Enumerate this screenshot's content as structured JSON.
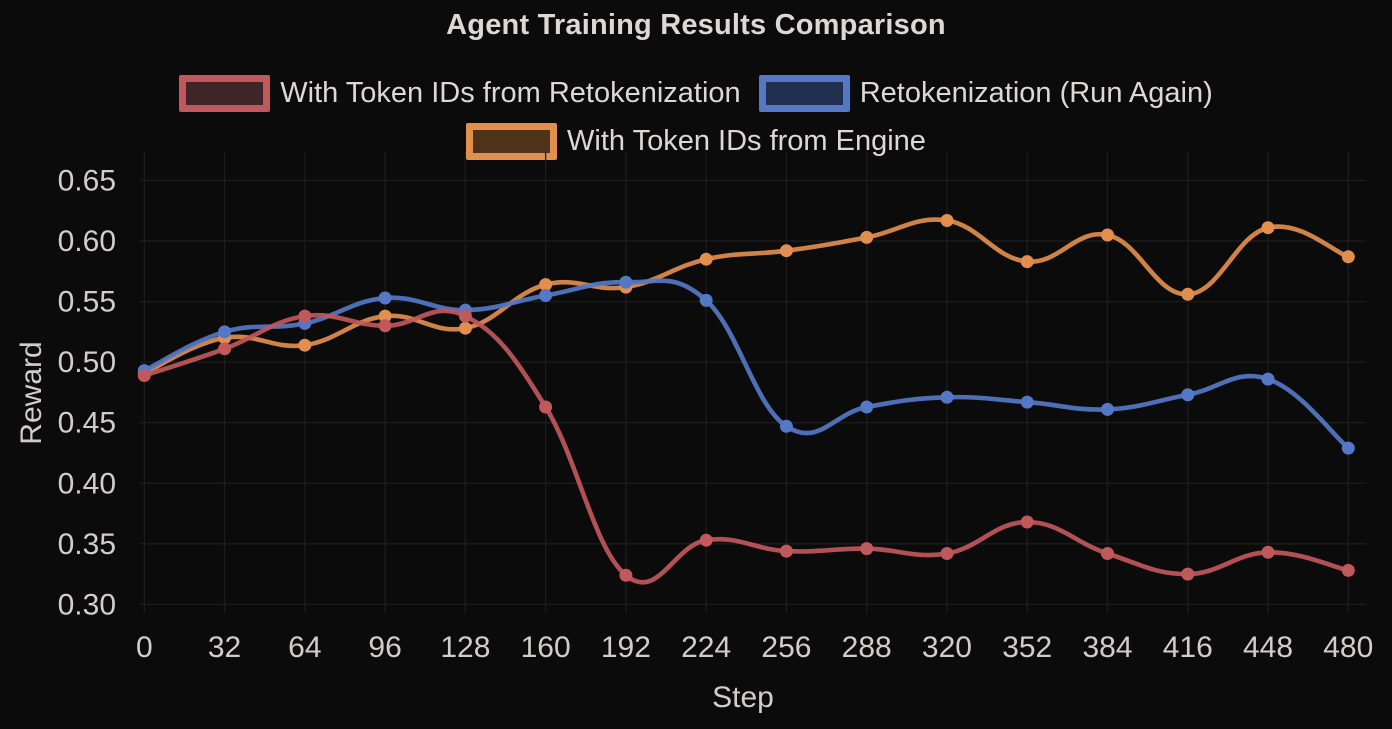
{
  "title": "Agent Training Results Comparison",
  "colors": {
    "background": "#0b0b0b",
    "grid": "#1c1c1c",
    "text": "#d2cdcd",
    "title_text": "#dcd8d8"
  },
  "legend_rows": [
    [
      0,
      1
    ],
    [
      2
    ]
  ],
  "chart_data": {
    "type": "line",
    "title": "Agent Training Results Comparison",
    "xlabel": "Step",
    "ylabel": "Reward",
    "x": [
      0,
      32,
      64,
      96,
      128,
      160,
      192,
      224,
      256,
      288,
      320,
      352,
      384,
      416,
      448,
      480
    ],
    "yticks": [
      0.3,
      0.35,
      0.4,
      0.45,
      0.5,
      0.55,
      0.6,
      0.65
    ],
    "ylim": [
      0.28,
      0.67
    ],
    "grid": true,
    "legend_position": "top",
    "marker": "circle",
    "series": [
      {
        "name": "With Token IDs from Retokenization",
        "color": "#c1585c",
        "swatch_fill": "#3f2428",
        "values": [
          0.489,
          0.511,
          0.538,
          0.53,
          0.538,
          0.463,
          0.324,
          0.353,
          0.344,
          0.346,
          0.342,
          0.368,
          0.342,
          0.325,
          0.343,
          0.328
        ]
      },
      {
        "name": "Retokenization (Run Again)",
        "color": "#5478c6",
        "swatch_fill": "#22304f",
        "values": [
          0.493,
          0.525,
          0.532,
          0.553,
          0.543,
          0.555,
          0.566,
          0.551,
          0.447,
          0.463,
          0.471,
          0.467,
          0.461,
          0.473,
          0.486,
          0.429
        ]
      },
      {
        "name": "With Token IDs from Engine",
        "color": "#e28e4d",
        "swatch_fill": "#4e3219",
        "values": [
          0.491,
          0.52,
          0.514,
          0.538,
          0.528,
          0.564,
          0.562,
          0.585,
          0.592,
          0.603,
          0.617,
          0.583,
          0.605,
          0.556,
          0.611,
          0.587
        ]
      }
    ]
  }
}
